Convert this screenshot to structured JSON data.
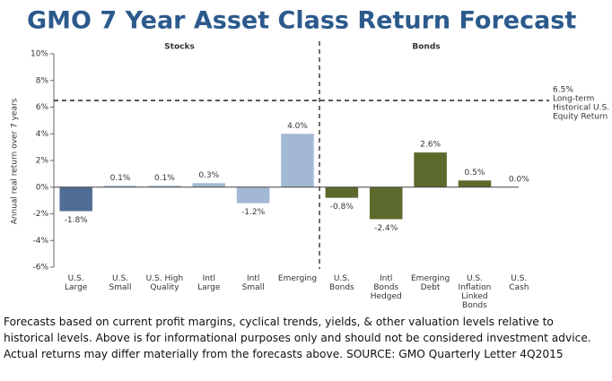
{
  "chart_data": {
    "type": "bar",
    "title": "GMO 7 Year Asset Class Return Forecast",
    "group_labels": [
      "Stocks",
      "Bonds"
    ],
    "y_label": "Annual real return over 7 years",
    "categories": [
      "U.S.\nLarge",
      "U.S.\nSmall",
      "U.S. High\nQuality",
      "Intl\nLarge",
      "Intl\nSmall",
      "Emerging",
      "U.S.\nBonds",
      "Intl\nBonds\nHedged",
      "Emerging\nDebt",
      "U.S.\nInflation\nLinked\nBonds",
      "U.S.\nCash"
    ],
    "values": [
      -1.8,
      0.1,
      0.1,
      0.3,
      -1.2,
      4.0,
      -0.8,
      -2.4,
      2.6,
      0.5,
      0.0
    ],
    "value_labels": [
      "-1.8%",
      "0.1%",
      "0.1%",
      "0.3%",
      "-1.2%",
      "4.0%",
      "-0.8%",
      "-2.4%",
      "2.6%",
      "0.5%",
      "0.0%"
    ],
    "colors": [
      "#516d95",
      "#a3b9d3",
      "#a3b9d3",
      "#a3b9d3",
      "#a3b9d3",
      "#a3b9d3",
      "#5b6a2c",
      "#5b6a2c",
      "#5b6a2c",
      "#5b6a2c",
      "#5b6a2c"
    ],
    "ylim": [
      -6,
      10
    ],
    "yticks": [
      {
        "value": -6,
        "label": "-6%"
      },
      {
        "value": -4,
        "label": "-4%"
      },
      {
        "value": -2,
        "label": "-2%"
      },
      {
        "value": 0,
        "label": "0%"
      },
      {
        "value": 2,
        "label": "2%"
      },
      {
        "value": 4,
        "label": "4%"
      },
      {
        "value": 6,
        "label": "6%"
      },
      {
        "value": 8,
        "label": "8%"
      },
      {
        "value": 10,
        "label": "10%"
      }
    ],
    "reference_line": {
      "value": 6.5,
      "label": "6.5%",
      "lines": [
        "Long-term",
        "Historical U.S.",
        "Equity Return"
      ]
    }
  },
  "footnote": "Forecasts based on current profit margins, cyclical trends, yields, & other valuation levels relative to historical levels.  Above is for informational purposes only and should not be considered investment advice.  Actual returns may differ materially from  the forecasts above.  SOURCE:  GMO Quarterly Letter 4Q2015"
}
